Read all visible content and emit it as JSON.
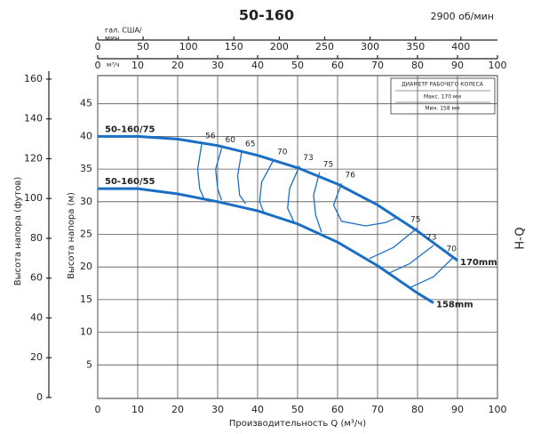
{
  "chart_data": {
    "type": "line",
    "title": "50-160",
    "rpm": "2900 об/мин",
    "side_label": "H-Q",
    "x_label": "Производительность Q (м³/ч)",
    "y_label": "Высота напора (м)",
    "y_ft_label": "Высота напора (футов)",
    "gpm_label": [
      "гал. США/",
      "мин"
    ],
    "m3_label": "м³/ч",
    "xlim": [
      0,
      100
    ],
    "xticks": [
      0,
      10,
      20,
      30,
      40,
      50,
      60,
      70,
      80,
      90,
      100
    ],
    "ylim": [
      0,
      50
    ],
    "yticks": [
      5,
      10,
      15,
      20,
      25,
      30,
      35,
      40,
      45
    ],
    "ftlim": [
      0,
      164
    ],
    "ftticks": [
      0,
      20,
      40,
      60,
      80,
      100,
      120,
      140,
      160
    ],
    "gpmlim": [
      0,
      440.3
    ],
    "gpmticks": [
      0,
      50,
      100,
      150,
      200,
      250,
      300,
      350,
      400
    ],
    "grid": true,
    "diameter_box": {
      "title": "ДИАМЕТР РАБОЧЕГО КОЛЕСА",
      "max": "Макс. 170 мм",
      "min": "Мин. 158 мм"
    },
    "series": [
      {
        "name": "50-160/75",
        "end_label": "170mm",
        "color": "#1a6fc4",
        "x": [
          0,
          10,
          20,
          30,
          40,
          50,
          60,
          70,
          80,
          90
        ],
        "values": [
          40,
          40,
          39.6,
          38.6,
          37.1,
          35.2,
          32.7,
          29.5,
          25.5,
          21
        ]
      },
      {
        "name": "50-160/55",
        "end_label": "158mm",
        "color": "#1a6fc4",
        "x": [
          0,
          10,
          20,
          30,
          40,
          50,
          60,
          70,
          80,
          84
        ],
        "values": [
          32,
          32,
          31.2,
          30,
          28.6,
          26.6,
          23.8,
          20.2,
          16,
          14.5
        ]
      }
    ],
    "efficiency": [
      {
        "name": "56",
        "color": "#1a6fc4",
        "x": [
          26,
          25,
          25.5,
          26.5
        ],
        "values": [
          38.8,
          35,
          32,
          30.6
        ]
      },
      {
        "name": "60",
        "color": "#1a6fc4",
        "x": [
          31,
          29.5,
          30,
          31
        ],
        "values": [
          38.2,
          35,
          32,
          30.2
        ]
      },
      {
        "name": "65",
        "color": "#1a6fc4",
        "x": [
          36,
          35,
          35.5,
          37
        ],
        "values": [
          37.6,
          34,
          31,
          29.7
        ]
      },
      {
        "name": "70",
        "color": "#1a6fc4",
        "x": [
          44,
          41,
          40.5,
          41.5,
          null,
          89,
          84,
          78
        ],
        "values": [
          36.4,
          33,
          30,
          28.4,
          null,
          21.5,
          18.5,
          16.8
        ]
      },
      {
        "name": "73",
        "color": "#1a6fc4",
        "x": [
          50.5,
          48,
          47.5,
          49,
          null,
          84,
          78,
          73
        ],
        "values": [
          35.5,
          32,
          29,
          27,
          null,
          23.3,
          20.5,
          19.1
        ]
      },
      {
        "name": "75",
        "color": "#1a6fc4",
        "x": [
          55.5,
          54,
          54.5,
          56,
          null,
          80,
          74,
          68
        ],
        "values": [
          34.5,
          31,
          28,
          25.3,
          null,
          26,
          23,
          21.3
        ]
      },
      {
        "name": "76",
        "color": "#1a6fc4",
        "x": [
          61,
          59,
          61,
          67,
          72,
          75
        ],
        "values": [
          32.8,
          29.5,
          27,
          26.3,
          26.8,
          27.6
        ]
      }
    ]
  }
}
